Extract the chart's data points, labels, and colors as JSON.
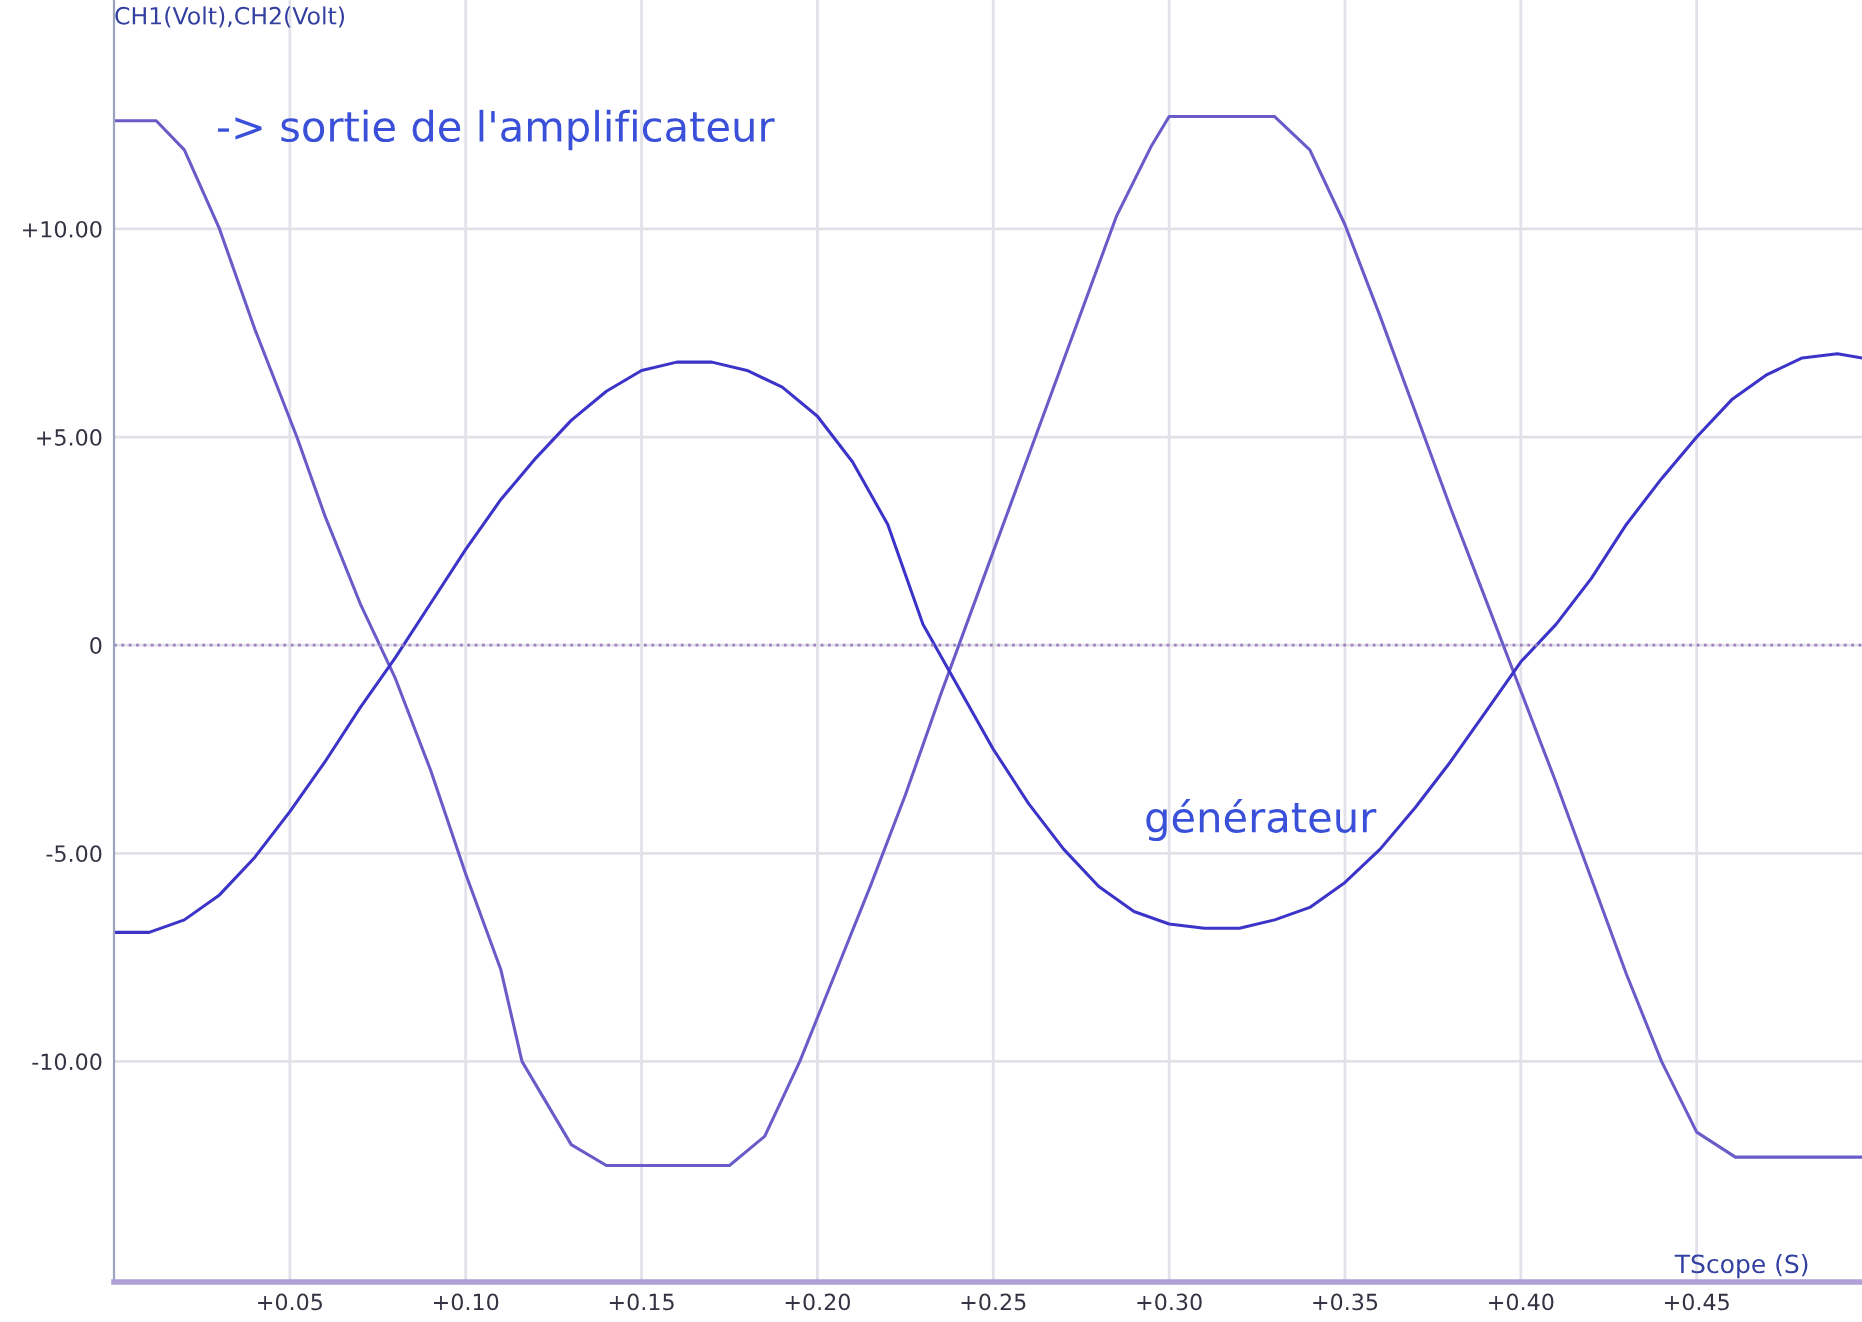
{
  "chart_data": {
    "type": "line",
    "xlabel": "TScope (S)",
    "ylabel": "CH1(Volt),CH2(Volt)",
    "xlim": [
      0,
      0.497
    ],
    "ylim": [
      -15.3,
      15.5
    ],
    "xticks": [
      {
        "value": 0.05,
        "label": "+0.05"
      },
      {
        "value": 0.1,
        "label": "+0.10"
      },
      {
        "value": 0.15,
        "label": "+0.15"
      },
      {
        "value": 0.2,
        "label": "+0.20"
      },
      {
        "value": 0.25,
        "label": "+0.25"
      },
      {
        "value": 0.3,
        "label": "+0.30"
      },
      {
        "value": 0.35,
        "label": "+0.35"
      },
      {
        "value": 0.4,
        "label": "+0.40"
      },
      {
        "value": 0.45,
        "label": "+0.45"
      }
    ],
    "yticks": [
      {
        "value": -10,
        "label": "-10.00"
      },
      {
        "value": -5,
        "label": "-5.00"
      },
      0,
      {
        "value": 5,
        "label": "+5.00"
      },
      {
        "value": 10,
        "label": "+10.00"
      }
    ],
    "grid": true,
    "marker": "none",
    "line_style": "solid",
    "ref_lines": [
      {
        "axis": "y",
        "value": 0,
        "color": "#a080c0",
        "line_style": "dotted"
      }
    ],
    "series": [
      {
        "color": "#6a5cc8",
        "x": [
          0,
          0.012,
          0.02,
          0.03,
          0.04,
          0.052,
          0.06,
          0.07,
          0.08,
          0.09,
          0.1,
          0.11,
          0.116,
          0.13,
          0.14,
          0.175,
          0.185,
          0.195,
          0.205,
          0.215,
          0.225,
          0.235,
          0.245,
          0.255,
          0.265,
          0.275,
          0.285,
          0.295,
          0.3,
          0.33,
          0.34,
          0.35,
          0.36,
          0.37,
          0.38,
          0.39,
          0.4,
          0.41,
          0.42,
          0.43,
          0.44,
          0.45,
          0.461,
          0.497
        ],
        "values": [
          12.6,
          12.6,
          11.9,
          10.0,
          7.6,
          5.0,
          3.1,
          1.0,
          -0.8,
          -3.0,
          -5.5,
          -7.8,
          -10.0,
          -12.0,
          -12.5,
          -12.5,
          -11.8,
          -10.0,
          -7.9,
          -5.8,
          -3.6,
          -1.2,
          1.1,
          3.4,
          5.7,
          8.0,
          10.3,
          12.0,
          12.7,
          12.7,
          11.9,
          10.1,
          7.9,
          5.6,
          3.3,
          1.1,
          -1.1,
          -3.3,
          -5.6,
          -7.9,
          -10.0,
          -11.7,
          -12.3,
          -12.3
        ]
      },
      {
        "color": "#3c34c8",
        "x": [
          0,
          0.01,
          0.02,
          0.03,
          0.04,
          0.05,
          0.06,
          0.07,
          0.08,
          0.09,
          0.1,
          0.11,
          0.12,
          0.13,
          0.14,
          0.15,
          0.16,
          0.17,
          0.18,
          0.19,
          0.2,
          0.21,
          0.22,
          0.23,
          0.24,
          0.25,
          0.26,
          0.27,
          0.28,
          0.29,
          0.3,
          0.31,
          0.32,
          0.33,
          0.34,
          0.35,
          0.36,
          0.37,
          0.38,
          0.39,
          0.4,
          0.41,
          0.42,
          0.43,
          0.44,
          0.45,
          0.46,
          0.47,
          0.48,
          0.49,
          0.497
        ],
        "values": [
          -6.9,
          -6.9,
          -6.6,
          -6.0,
          -5.1,
          -4.0,
          -2.8,
          -1.5,
          -0.3,
          1.0,
          2.3,
          3.5,
          4.5,
          5.4,
          6.1,
          6.6,
          6.8,
          6.8,
          6.6,
          6.2,
          5.5,
          4.4,
          2.9,
          0.5,
          -1.0,
          -2.5,
          -3.8,
          -4.9,
          -5.8,
          -6.4,
          -6.7,
          -6.8,
          -6.8,
          -6.6,
          -6.3,
          -5.7,
          -4.9,
          -3.9,
          -2.8,
          -1.6,
          -0.4,
          0.5,
          1.6,
          2.9,
          4.0,
          5.0,
          5.9,
          6.5,
          6.9,
          7.0,
          6.9
        ]
      }
    ],
    "annotations": [
      "-> sortie de l'amplificateur",
      "générateur"
    ]
  }
}
